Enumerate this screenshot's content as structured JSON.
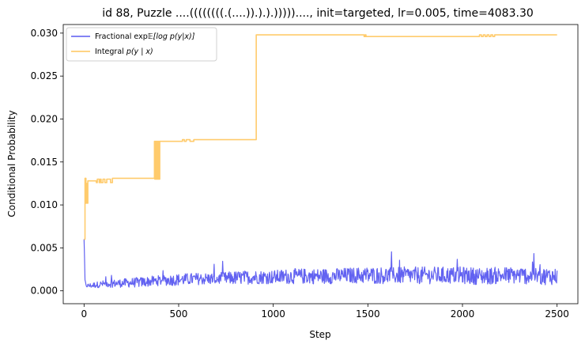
{
  "chart_data": {
    "type": "line",
    "title": "id 88, Puzzle ....((((((((.(....)).).).)))))...., init=targeted, lr=0.005, time=4083.30",
    "xlabel": "Step",
    "ylabel": "Conditional Probability",
    "xlim": [
      -110,
      2610
    ],
    "ylim": [
      -0.0015,
      0.031
    ],
    "xticks": [
      0,
      500,
      1000,
      1500,
      2000,
      2500
    ],
    "xtick_labels": [
      "0",
      "500",
      "1000",
      "1500",
      "2000",
      "2500"
    ],
    "yticks": [
      0.0,
      0.005,
      0.01,
      0.015,
      0.02,
      0.025,
      0.03
    ],
    "ytick_labels": [
      "0.000",
      "0.005",
      "0.010",
      "0.015",
      "0.020",
      "0.025",
      "0.030"
    ],
    "grid": false,
    "legend_position": "top-left",
    "series": [
      {
        "name": "Fractional exp𝔼[log p(y|x)]",
        "color": "#5a5af0",
        "style": "noisy",
        "x": [
          0,
          5,
          10,
          30,
          100,
          200,
          300,
          400,
          500,
          600,
          700,
          800,
          900,
          1000,
          1100,
          1200,
          1300,
          1400,
          1500,
          1600,
          1700,
          1800,
          1900,
          2000,
          2100,
          2200,
          2300,
          2400,
          2500
        ],
        "y": [
          0.006,
          0.0012,
          0.0006,
          0.0006,
          0.0008,
          0.0009,
          0.001,
          0.0012,
          0.0013,
          0.0014,
          0.0014,
          0.0015,
          0.0016,
          0.0016,
          0.0017,
          0.0017,
          0.0017,
          0.0018,
          0.0018,
          0.0018,
          0.0018,
          0.0018,
          0.0018,
          0.0018,
          0.0017,
          0.0018,
          0.0018,
          0.0017,
          0.0017
        ],
        "band": [
          0.0,
          0.0002,
          0.0002,
          0.0003,
          0.0004,
          0.0005,
          0.0006,
          0.0006,
          0.0007,
          0.0007,
          0.0007,
          0.0008,
          0.0008,
          0.0008,
          0.0009,
          0.0009,
          0.0009,
          0.0009,
          0.001,
          0.001,
          0.001,
          0.001,
          0.001,
          0.001,
          0.001,
          0.001,
          0.001,
          0.001,
          0.001
        ]
      },
      {
        "name": "Integral p(y | x)",
        "color": "#ffc55c",
        "style": "step",
        "x": [
          0,
          5,
          10,
          12,
          18,
          20,
          25,
          30,
          60,
          65,
          70,
          80,
          85,
          90,
          100,
          110,
          120,
          140,
          150,
          370,
          372,
          374,
          376,
          378,
          380,
          382,
          384,
          386,
          388,
          390,
          392,
          394,
          396,
          398,
          400,
          405,
          500,
          520,
          530,
          540,
          560,
          580,
          900,
          910,
          1470,
          1480,
          1485,
          1490,
          1500,
          2080,
          2090,
          2100,
          2110,
          2120,
          2130,
          2140,
          2150,
          2160,
          2170,
          2180,
          2500
        ],
        "y": [
          0.006,
          0.0131,
          0.0102,
          0.0125,
          0.0102,
          0.0128,
          0.0128,
          0.0128,
          0.0128,
          0.0126,
          0.013,
          0.0126,
          0.013,
          0.0126,
          0.013,
          0.0126,
          0.013,
          0.0126,
          0.0131,
          0.0131,
          0.0174,
          0.013,
          0.0174,
          0.013,
          0.0174,
          0.013,
          0.0174,
          0.013,
          0.0174,
          0.013,
          0.0174,
          0.013,
          0.0174,
          0.013,
          0.0174,
          0.0174,
          0.0174,
          0.0176,
          0.0174,
          0.0176,
          0.0174,
          0.0176,
          0.0176,
          0.0298,
          0.0298,
          0.0296,
          0.0298,
          0.0296,
          0.0296,
          0.0296,
          0.0298,
          0.0296,
          0.0298,
          0.0296,
          0.0298,
          0.0296,
          0.0298,
          0.0296,
          0.0298,
          0.0298,
          0.0298
        ]
      }
    ],
    "legend": {
      "entries": [
        {
          "label_prefix": "Fractional exp",
          "label_math": "𝔼[log p(y|x)]",
          "color": "#5a5af0"
        },
        {
          "label_prefix": "Integral ",
          "label_math": "p(y | x)",
          "color": "#ffc55c"
        }
      ]
    }
  }
}
